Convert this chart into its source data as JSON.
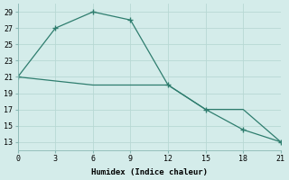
{
  "xlabel": "Humidex (Indice chaleur)",
  "line1_x": [
    0,
    3,
    6,
    9,
    12,
    15,
    18,
    21
  ],
  "line1_y": [
    21.0,
    27.0,
    29.0,
    28.0,
    20.0,
    17.0,
    14.5,
    13.0
  ],
  "line2_x": [
    0,
    3,
    6,
    9,
    12,
    15,
    18,
    21
  ],
  "line2_y": [
    21.0,
    20.5,
    20.0,
    20.0,
    20.0,
    17.0,
    17.0,
    13.0
  ],
  "line_color": "#2e7d6e",
  "bg_color": "#d4ecea",
  "grid_color": "#b8d8d4",
  "xlim": [
    0,
    21
  ],
  "ylim": [
    12,
    30
  ],
  "yticks": [
    13,
    15,
    17,
    19,
    21,
    23,
    25,
    27,
    29
  ],
  "xticks": [
    0,
    3,
    6,
    9,
    12,
    15,
    18,
    21
  ]
}
